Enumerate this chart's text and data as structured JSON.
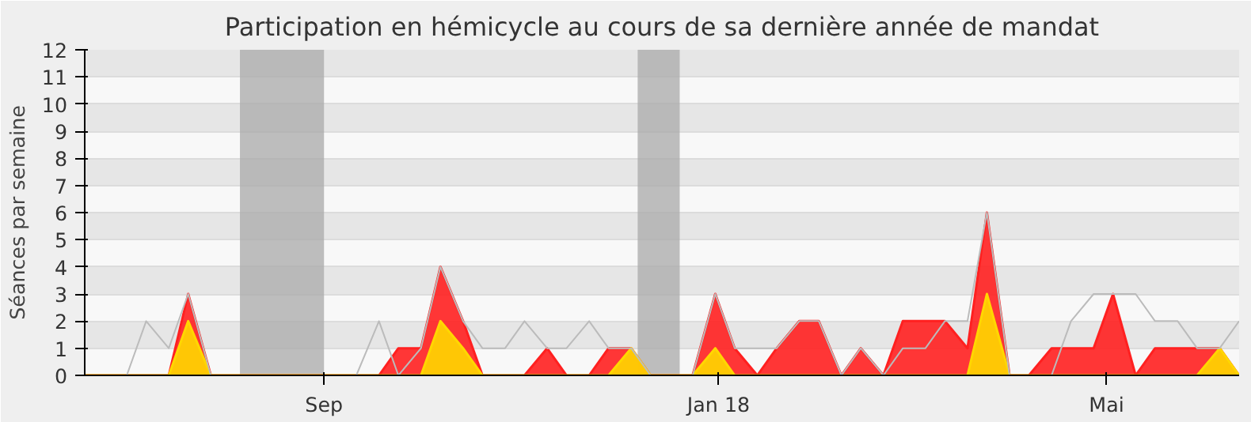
{
  "chart_data": {
    "type": "area",
    "title": "Participation en hémicycle au cours de sa dernière année de mandat",
    "ylabel": "Séances par semaine",
    "x": [
      "2017-06-19",
      "2017-06-25",
      "2017-07-02",
      "2017-07-08",
      "2017-07-15",
      "2017-07-21",
      "2017-07-28",
      "2017-08-03",
      "2017-08-10",
      "2017-08-16",
      "2017-08-23",
      "2017-08-29",
      "2017-09-05",
      "2017-09-11",
      "2017-09-18",
      "2017-09-24",
      "2017-10-01",
      "2017-10-07",
      "2017-10-14",
      "2017-10-20",
      "2017-10-27",
      "2017-11-02",
      "2017-11-09",
      "2017-11-15",
      "2017-11-22",
      "2017-11-28",
      "2017-12-05",
      "2017-12-11",
      "2017-12-18",
      "2017-12-24",
      "2017-12-31",
      "2018-01-06",
      "2018-01-13",
      "2018-01-19",
      "2018-01-26",
      "2018-02-01",
      "2018-02-08",
      "2018-02-14",
      "2018-02-21",
      "2018-02-27",
      "2018-03-06",
      "2018-03-12",
      "2018-03-19",
      "2018-03-25",
      "2018-04-01",
      "2018-04-07",
      "2018-04-14",
      "2018-04-20",
      "2018-04-27",
      "2018-05-03",
      "2018-05-10",
      "2018-05-16",
      "2018-05-23",
      "2018-05-29",
      "2018-06-05",
      "2018-06-11"
    ],
    "xlim": [
      "2017-06-19",
      "2018-06-11"
    ],
    "xticks": [
      {
        "value": "2017-09-01",
        "label": "Sep"
      },
      {
        "value": "2018-01-01",
        "label": "Jan 18"
      },
      {
        "value": "2018-05-01",
        "label": "Mai"
      }
    ],
    "ylim": [
      0,
      12
    ],
    "yticks": [
      0,
      1,
      2,
      3,
      4,
      5,
      6,
      7,
      8,
      9,
      10,
      11,
      12
    ],
    "grid": "y",
    "bands": [
      {
        "axis": "x",
        "from": "2017-08-06",
        "to": "2017-09-01",
        "color": "#aaaaaa"
      },
      {
        "axis": "x",
        "from": "2017-12-07",
        "to": "2017-12-20",
        "color": "#aaaaaa"
      }
    ],
    "series": [
      {
        "type": "line",
        "color": "#bbbbbb",
        "values": [
          null,
          null,
          0,
          2,
          1,
          3,
          0,
          0,
          0,
          0,
          0,
          0,
          0,
          0,
          2,
          0,
          1,
          4,
          2,
          1,
          1,
          2,
          1,
          1,
          2,
          1,
          1,
          0,
          0,
          0,
          3,
          1,
          1,
          1,
          2,
          2,
          0,
          1,
          0,
          1,
          1,
          2,
          2,
          6,
          0,
          0,
          0,
          2,
          3,
          3,
          3,
          2,
          2,
          1,
          1,
          2
        ]
      },
      {
        "color": "#ff2020",
        "values": [
          0,
          0,
          0,
          0,
          0,
          3,
          0,
          0,
          0,
          0,
          0,
          0,
          0,
          0,
          0,
          1,
          1,
          4,
          2,
          0,
          0,
          0,
          1,
          0,
          0,
          1,
          1,
          0,
          0,
          0,
          3,
          1,
          0,
          1,
          2,
          2,
          0,
          1,
          0,
          2,
          2,
          2,
          1,
          6,
          0,
          0,
          1,
          1,
          1,
          3,
          0,
          1,
          1,
          1,
          1,
          0
        ]
      },
      {
        "color": "#ffd700",
        "values": [
          0,
          0,
          0,
          0,
          0,
          2,
          0,
          0,
          0,
          0,
          0,
          0,
          0,
          0,
          0,
          0,
          0,
          2,
          1,
          0,
          0,
          0,
          0,
          0,
          0,
          0,
          1,
          0,
          0,
          0,
          1,
          0,
          0,
          0,
          0,
          0,
          0,
          0,
          0,
          0,
          0,
          0,
          0,
          3,
          0,
          0,
          0,
          0,
          0,
          0,
          0,
          0,
          0,
          0,
          1,
          0
        ]
      }
    ]
  }
}
